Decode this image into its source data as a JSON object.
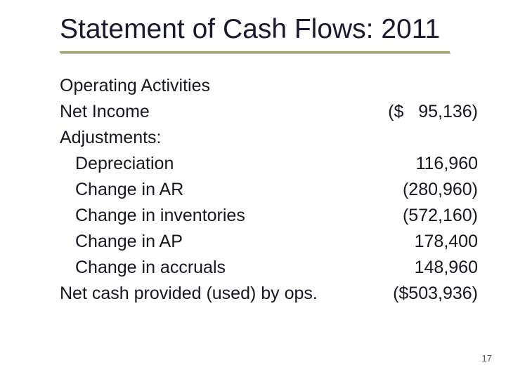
{
  "title": "Statement of Cash Flows: 2011",
  "section_heading": "Operating Activities",
  "rows": [
    {
      "label": "Net Income",
      "value": "($   95,136)",
      "indent": false
    },
    {
      "label": "Adjustments:",
      "value": "",
      "indent": false
    },
    {
      "label": "Depreciation",
      "value": "116,960",
      "indent": true
    },
    {
      "label": "Change in AR",
      "value": "(280,960)",
      "indent": true
    },
    {
      "label": "Change in inventories",
      "value": "(572,160)",
      "indent": true
    },
    {
      "label": "Change in AP",
      "value": "178,400",
      "indent": true
    },
    {
      "label": "Change in accruals",
      "value": "148,960",
      "indent": true
    },
    {
      "label": "Net cash provided (used) by ops.",
      "value": "($503,936)",
      "indent": false
    }
  ],
  "page_number": "17",
  "colors": {
    "text": "#1a1a2e",
    "underline": "#9aa04a",
    "underline_shadow": "#bdbdbd",
    "background": "#ffffff"
  },
  "fonts": {
    "title_family": "Arial",
    "title_size_pt": 39,
    "body_family": "Tahoma",
    "body_size_pt": 25
  }
}
